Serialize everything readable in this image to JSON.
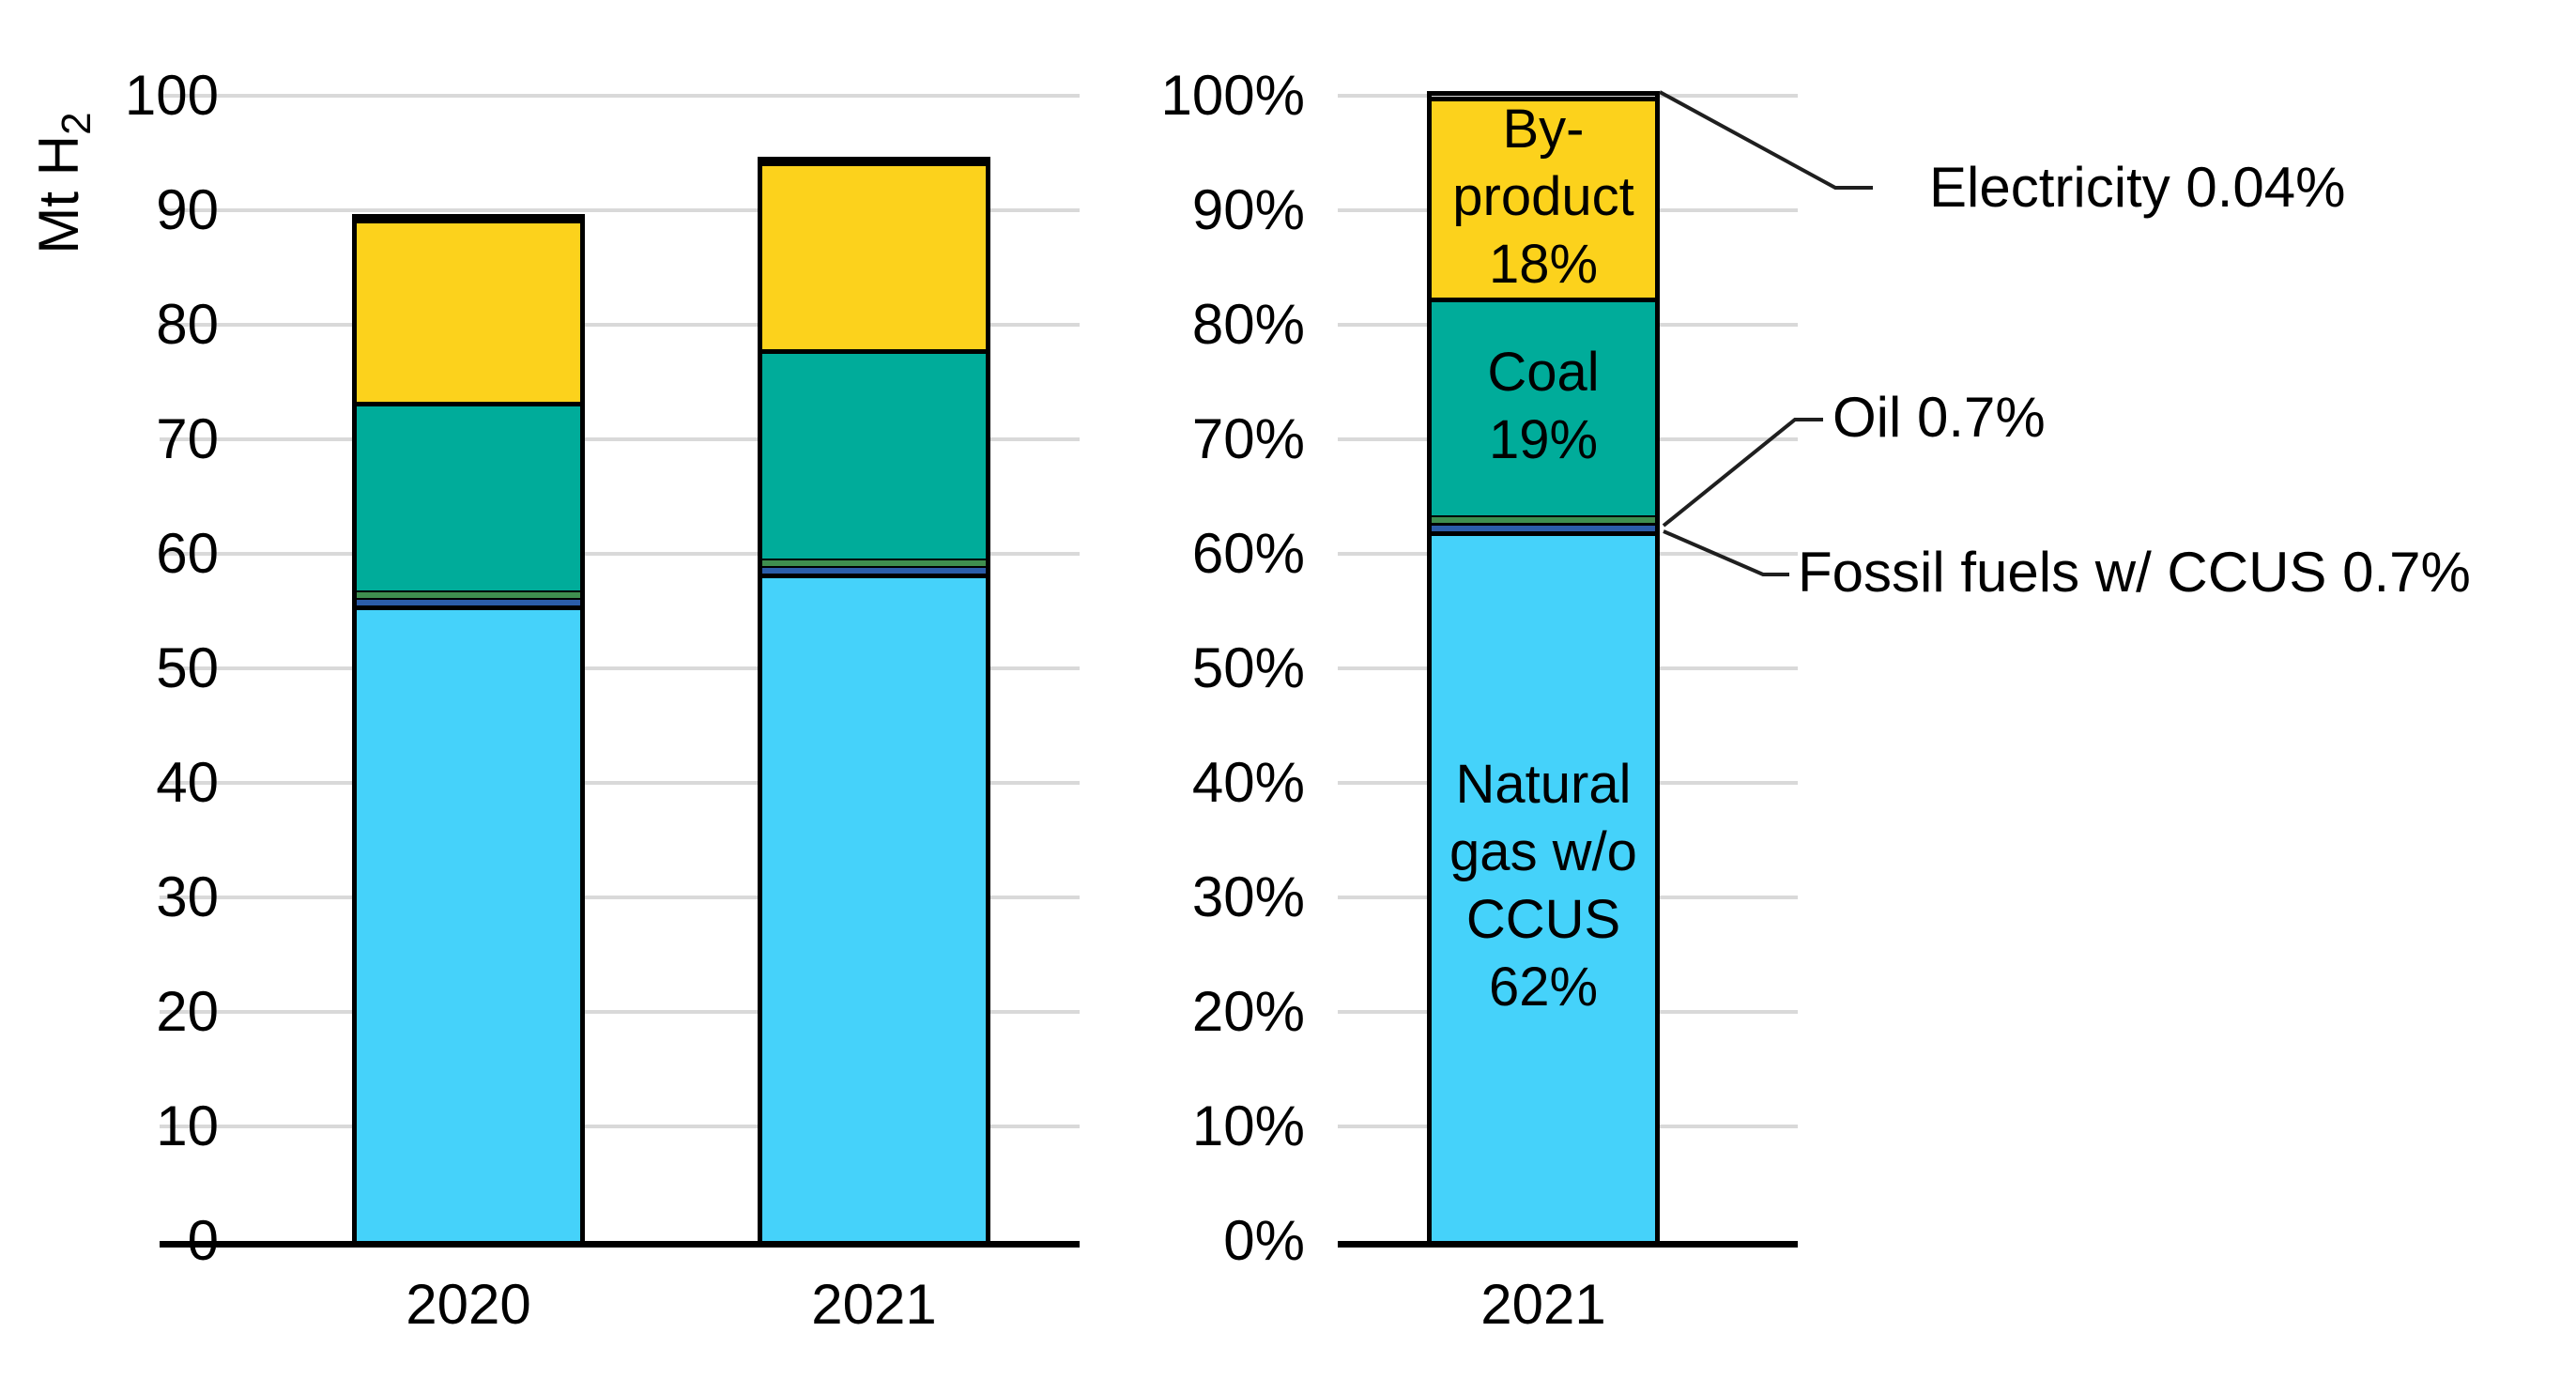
{
  "figure_title": "",
  "chart_data": [
    {
      "type": "bar",
      "stacked": true,
      "ylabel": "Mt H2",
      "ylabel_parts": {
        "text": "Mt H",
        "sub": "2"
      },
      "categories": [
        "2020",
        "2021"
      ],
      "yticks": [
        "0",
        "10",
        "20",
        "30",
        "40",
        "50",
        "60",
        "70",
        "80",
        "90",
        "100"
      ],
      "ylim": [
        0,
        100
      ],
      "grid": true,
      "series": [
        {
          "name": "Natural gas w/o CCUS",
          "color": "#45D2FA",
          "values": [
            55.5,
            58.3
          ]
        },
        {
          "name": "Fossil fuels w/ CCUS",
          "color": "#2B5DA9",
          "values": [
            0.65,
            0.65
          ]
        },
        {
          "name": "Oil",
          "color": "#3F8F4F",
          "values": [
            0.65,
            0.65
          ]
        },
        {
          "name": "Coal",
          "color": "#00AC9A",
          "values": [
            16.5,
            18.3
          ]
        },
        {
          "name": "By-product",
          "color": "#FCD21C",
          "values": [
            16.0,
            16.4
          ]
        }
      ]
    },
    {
      "type": "bar",
      "stacked": true,
      "ylabel": "",
      "categories": [
        "2021"
      ],
      "yticks": [
        "0%",
        "10%",
        "20%",
        "30%",
        "40%",
        "50%",
        "60%",
        "70%",
        "80%",
        "90%",
        "100%"
      ],
      "ylim": [
        0,
        100
      ],
      "grid": true,
      "series": [
        {
          "name": "Natural gas w/o CCUS",
          "color": "#45D2FA",
          "values": [
            62
          ]
        },
        {
          "name": "Fossil fuels w/ CCUS",
          "color": "#2B5DA9",
          "values": [
            0.7
          ]
        },
        {
          "name": "Oil",
          "color": "#3F8F4F",
          "values": [
            0.7
          ]
        },
        {
          "name": "Coal",
          "color": "#00AC9A",
          "values": [
            19
          ]
        },
        {
          "name": "By-product",
          "color": "#FCD21C",
          "values": [
            17.56
          ]
        },
        {
          "name": "Electricity",
          "color": "#000000",
          "values": [
            0.04
          ]
        }
      ],
      "segment_labels": [
        {
          "series": "By-product",
          "lines": [
            "By-",
            "product",
            "18%"
          ]
        },
        {
          "series": "Coal",
          "lines": [
            "Coal",
            "19%"
          ]
        },
        {
          "series": "Natural gas w/o CCUS",
          "lines": [
            "Natural",
            "gas w/o",
            "CCUS",
            "62%"
          ]
        }
      ],
      "annotations": [
        {
          "text": "Electricity 0.04%"
        },
        {
          "text": "Oil 0.7%"
        },
        {
          "text": "Fossil fuels w/ CCUS 0.7%"
        }
      ]
    }
  ],
  "colors": {
    "grid": "#D9D9D9",
    "axis": "#000000",
    "leader_line": "#1F1F1F",
    "text": "#000000",
    "background": "#FFFFFF"
  }
}
